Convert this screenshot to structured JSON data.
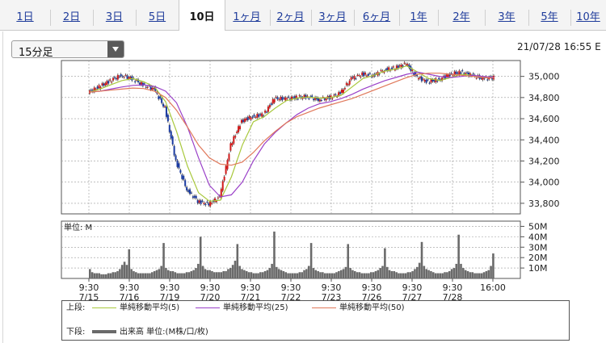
{
  "tabs": [
    {
      "label": "1日"
    },
    {
      "label": "2日"
    },
    {
      "label": "3日"
    },
    {
      "label": "5日"
    },
    {
      "label": "10日",
      "active": true
    },
    {
      "label": "1ヶ月"
    },
    {
      "label": "2ヶ月"
    },
    {
      "label": "3ヶ月"
    },
    {
      "label": "6ヶ月"
    },
    {
      "label": "1年"
    },
    {
      "label": "2年"
    },
    {
      "label": "3年"
    },
    {
      "label": "5年"
    },
    {
      "label": "10年"
    }
  ],
  "interval": {
    "selected": "15分足"
  },
  "timestamp": "21/07/28 16:55 E",
  "legend": {
    "upper_label": "上段:",
    "lower_label": "下段:",
    "ma5": "単純移動平均(5)",
    "ma25": "単純移動平均(25)",
    "ma50": "単純移動平均(50)",
    "volume": "出来高 単位:(M株/口/枚)"
  },
  "colors": {
    "price": "#1a1a1a",
    "up": "#d01a1a",
    "down": "#1a3aa0",
    "ma5": "#a8c83c",
    "ma25": "#9a40c8",
    "ma50": "#e0785a",
    "volume": "#6a6a6a"
  },
  "chart_data": [
    {
      "type": "candlestick",
      "title": "",
      "x_tick_labels": [
        {
          "time": "9:30",
          "date": "7/15"
        },
        {
          "time": "9:30",
          "date": "7/16"
        },
        {
          "time": "9:30",
          "date": "7/19"
        },
        {
          "time": "9:30",
          "date": "7/20"
        },
        {
          "time": "9:30",
          "date": "7/21"
        },
        {
          "time": "9:30",
          "date": "7/22"
        },
        {
          "time": "9:30",
          "date": "7/23"
        },
        {
          "time": "9:30",
          "date": "7/26"
        },
        {
          "time": "9:30",
          "date": "7/27"
        },
        {
          "time": "9:30",
          "date": "7/28"
        },
        {
          "time": "16:00",
          "date": ""
        }
      ],
      "y_ticks": [
        33800,
        34000,
        34200,
        34400,
        34600,
        34800,
        35000
      ],
      "y_tick_labels": [
        "33,800",
        "34,000",
        "34,200",
        "34,400",
        "34,600",
        "34,800",
        "35,000"
      ],
      "ylim": [
        33700,
        35150
      ],
      "series": [
        {
          "key": "price",
          "values": [
            34850,
            34900,
            34960,
            35010,
            34980,
            34920,
            34880,
            34700,
            34200,
            33930,
            33820,
            33790,
            33860,
            34350,
            34580,
            34620,
            34640,
            34790,
            34790,
            34800,
            34810,
            34780,
            34800,
            34840,
            34980,
            35020,
            35010,
            35060,
            35080,
            35120,
            34990,
            34950,
            34970,
            35020,
            35040,
            35010,
            34980,
            34990
          ]
        },
        {
          "key": "ma5",
          "values": [
            34850,
            34880,
            34920,
            34960,
            34980,
            34950,
            34900,
            34760,
            34480,
            34150,
            33900,
            33820,
            33830,
            34050,
            34350,
            34570,
            34620,
            34700,
            34770,
            34795,
            34805,
            34795,
            34800,
            34820,
            34900,
            34980,
            35010,
            35050,
            35070,
            35100,
            35040,
            34980,
            34960,
            34990,
            35020,
            35010,
            34990,
            34990
          ]
        },
        {
          "key": "ma25",
          "values": [
            34850,
            34860,
            34880,
            34900,
            34915,
            34920,
            34905,
            34860,
            34750,
            34520,
            34230,
            33970,
            33860,
            33880,
            34000,
            34200,
            34360,
            34470,
            34560,
            34640,
            34700,
            34740,
            34760,
            34790,
            34830,
            34880,
            34920,
            34960,
            34990,
            35020,
            35040,
            35020,
            35000,
            34990,
            35000,
            35010,
            35000,
            34990
          ]
        },
        {
          "key": "ma50",
          "values": [
            34850,
            34860,
            34870,
            34880,
            34890,
            34885,
            34860,
            34800,
            34680,
            34520,
            34350,
            34230,
            34170,
            34160,
            34190,
            34280,
            34390,
            34480,
            34560,
            34620,
            34660,
            34700,
            34730,
            34760,
            34790,
            34830,
            34870,
            34910,
            34950,
            34990,
            35020,
            35030,
            35030,
            35020,
            35010,
            35000,
            34990,
            34985
          ]
        }
      ]
    },
    {
      "type": "bar",
      "title": "",
      "unit_label": "単位: M",
      "y_ticks": [
        10,
        20,
        30,
        40,
        50
      ],
      "y_tick_labels": [
        "10M",
        "20M",
        "30M",
        "40M",
        "50M"
      ],
      "ylim": [
        0,
        55
      ],
      "series": [
        {
          "name": "出来高",
          "values": [
            9,
            6,
            5,
            5,
            5,
            4,
            4,
            4,
            5,
            5,
            6,
            6,
            7,
            9,
            13,
            16,
            13,
            28,
            9,
            7,
            6,
            5,
            5,
            5,
            5,
            5,
            5,
            6,
            7,
            8,
            9,
            12,
            34,
            10,
            8,
            7,
            7,
            6,
            5,
            5,
            5,
            5,
            6,
            6,
            7,
            8,
            10,
            14,
            40,
            12,
            9,
            8,
            8,
            7,
            6,
            6,
            6,
            6,
            7,
            7,
            9,
            10,
            13,
            17,
            33,
            12,
            9,
            8,
            7,
            6,
            6,
            5,
            5,
            5,
            6,
            6,
            7,
            8,
            10,
            14,
            45,
            11,
            9,
            8,
            7,
            6,
            5,
            5,
            5,
            5,
            5,
            6,
            6,
            8,
            9,
            12,
            34,
            10,
            8,
            7,
            6,
            6,
            5,
            5,
            5,
            5,
            5,
            6,
            7,
            8,
            9,
            11,
            33,
            10,
            8,
            7,
            6,
            6,
            5,
            5,
            5,
            5,
            6,
            6,
            7,
            8,
            10,
            12,
            29,
            11,
            8,
            7,
            7,
            6,
            5,
            5,
            5,
            5,
            6,
            6,
            7,
            9,
            11,
            15,
            35,
            12,
            9,
            8,
            7,
            6,
            5,
            5,
            5,
            5,
            6,
            6,
            7,
            9,
            10,
            14,
            42,
            14,
            10,
            8,
            7,
            6,
            6,
            5,
            5,
            5,
            5,
            6,
            7,
            8,
            12,
            24
          ]
        }
      ]
    }
  ]
}
